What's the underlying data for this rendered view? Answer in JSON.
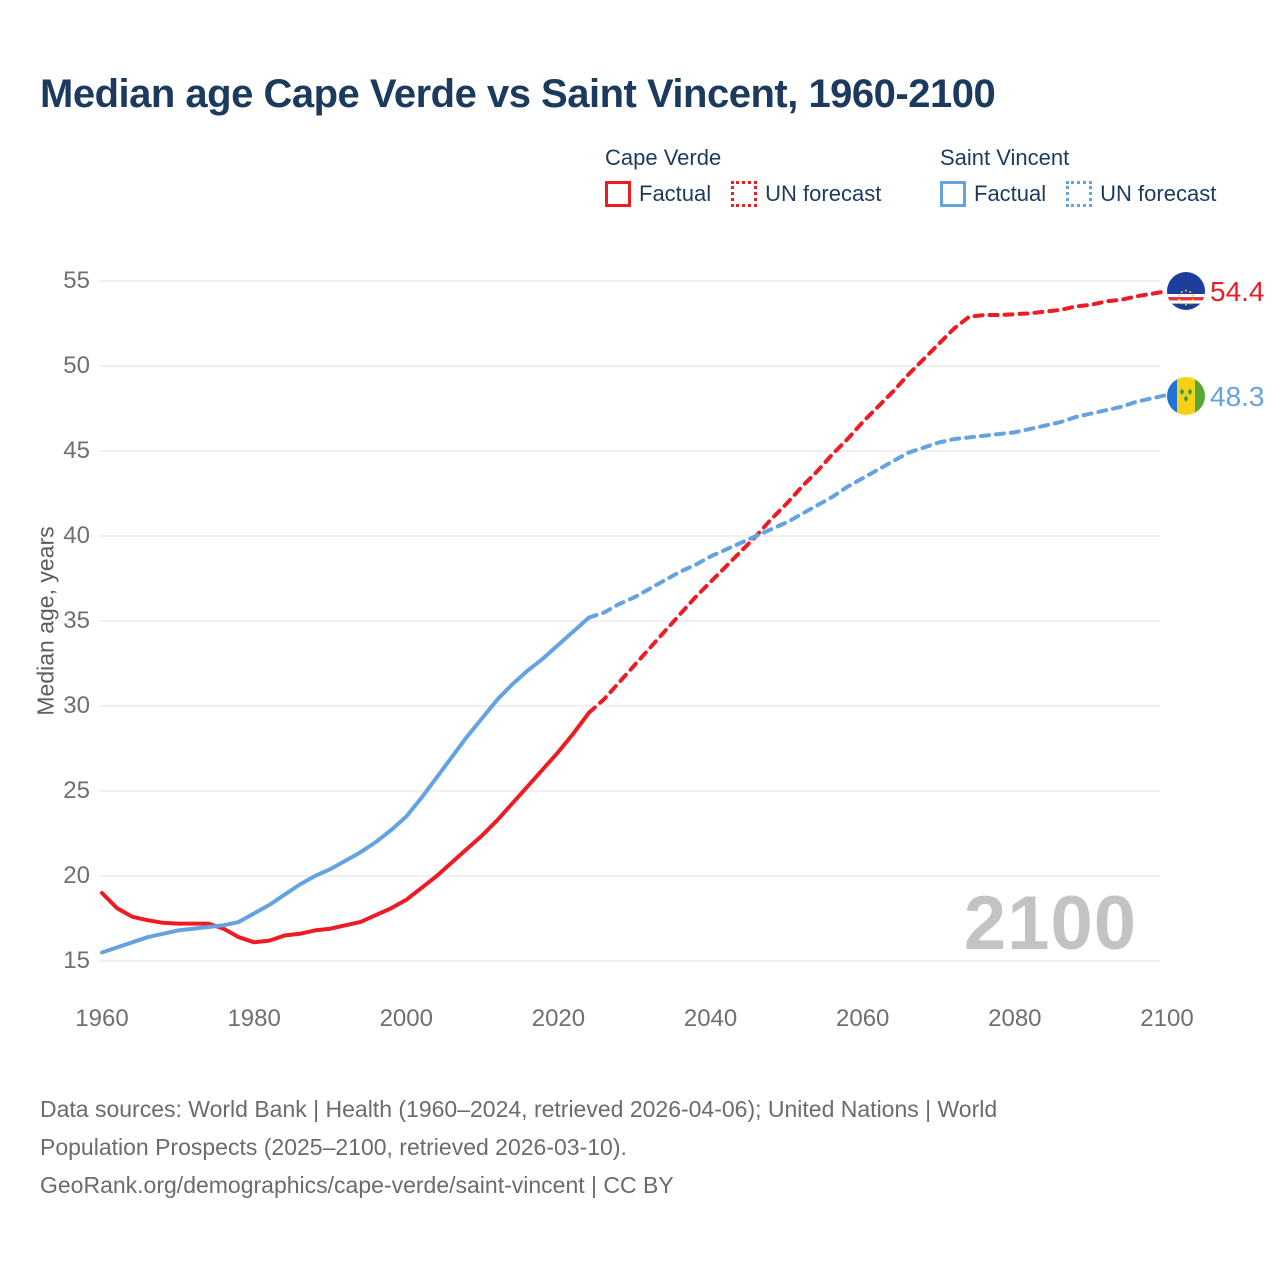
{
  "title": "Median age Cape Verde vs Saint Vincent, 1960-2100",
  "watermark": "2100",
  "legend": {
    "cape_verde": {
      "name": "Cape Verde",
      "factual_label": "Factual",
      "forecast_label": "UN forecast"
    },
    "saint_vincent": {
      "name": "Saint Vincent",
      "factual_label": "Factual",
      "forecast_label": "UN forecast"
    }
  },
  "end_labels": {
    "cape_verde": "54.4",
    "saint_vincent": "48.3"
  },
  "colors": {
    "cape_verde": "#ed1c24",
    "saint_vincent": "#64a3e0",
    "grid": "#ececec",
    "tick_text": "#6f6f6f",
    "title_text": "#1b3a5e",
    "watermark_text": "#c3c3c3"
  },
  "footer": {
    "line1": "Data sources: World Bank | Health (1960–2024, retrieved 2026-04-06); United Nations | World",
    "line2": "Population Prospects (2025–2100, retrieved 2026-03-10).",
    "line3": "GeoRank.org/demographics/cape-verde/saint-vincent | CC BY"
  },
  "chart_data": {
    "type": "line",
    "title": "Median age Cape Verde vs Saint Vincent, 1960-2100",
    "xlabel": "",
    "ylabel": "Median age, years",
    "x_ticks": [
      1960,
      1980,
      2000,
      2020,
      2040,
      2060,
      2080,
      2100
    ],
    "y_ticks": [
      15,
      20,
      25,
      30,
      35,
      40,
      45,
      50,
      55
    ],
    "xlim": [
      1960,
      2100
    ],
    "ylim": [
      15,
      55
    ],
    "grid": "horizontal",
    "legend_position": "top-right",
    "series": [
      {
        "name": "Cape Verde factual",
        "style": "solid",
        "color_key": "cape_verde",
        "points": [
          [
            1960,
            19.0
          ],
          [
            1962,
            18.1
          ],
          [
            1964,
            17.6
          ],
          [
            1966,
            17.4
          ],
          [
            1968,
            17.25
          ],
          [
            1970,
            17.2
          ],
          [
            1972,
            17.2
          ],
          [
            1974,
            17.2
          ],
          [
            1976,
            16.9
          ],
          [
            1978,
            16.4
          ],
          [
            1980,
            16.1
          ],
          [
            1982,
            16.2
          ],
          [
            1984,
            16.5
          ],
          [
            1986,
            16.6
          ],
          [
            1988,
            16.8
          ],
          [
            1990,
            16.9
          ],
          [
            1992,
            17.1
          ],
          [
            1994,
            17.3
          ],
          [
            1996,
            17.7
          ],
          [
            1998,
            18.1
          ],
          [
            2000,
            18.6
          ],
          [
            2002,
            19.3
          ],
          [
            2004,
            20.0
          ],
          [
            2006,
            20.8
          ],
          [
            2008,
            21.6
          ],
          [
            2010,
            22.4
          ],
          [
            2012,
            23.3
          ],
          [
            2014,
            24.3
          ],
          [
            2016,
            25.3
          ],
          [
            2018,
            26.3
          ],
          [
            2020,
            27.3
          ],
          [
            2022,
            28.4
          ],
          [
            2024,
            29.6
          ]
        ]
      },
      {
        "name": "Cape Verde UN forecast",
        "style": "dashed",
        "color_key": "cape_verde",
        "points": [
          [
            2024,
            29.6
          ],
          [
            2026,
            30.4
          ],
          [
            2028,
            31.4
          ],
          [
            2030,
            32.4
          ],
          [
            2032,
            33.4
          ],
          [
            2034,
            34.4
          ],
          [
            2036,
            35.4
          ],
          [
            2038,
            36.4
          ],
          [
            2040,
            37.3
          ],
          [
            2042,
            38.2
          ],
          [
            2044,
            39.1
          ],
          [
            2046,
            40.0
          ],
          [
            2048,
            41.0
          ],
          [
            2050,
            41.9
          ],
          [
            2052,
            42.9
          ],
          [
            2054,
            43.8
          ],
          [
            2056,
            44.8
          ],
          [
            2058,
            45.7
          ],
          [
            2060,
            46.7
          ],
          [
            2062,
            47.6
          ],
          [
            2064,
            48.5
          ],
          [
            2066,
            49.5
          ],
          [
            2068,
            50.4
          ],
          [
            2070,
            51.3
          ],
          [
            2072,
            52.2
          ],
          [
            2074,
            52.9
          ],
          [
            2076,
            53.0
          ],
          [
            2078,
            53.0
          ],
          [
            2080,
            53.05
          ],
          [
            2082,
            53.1
          ],
          [
            2084,
            53.2
          ],
          [
            2086,
            53.3
          ],
          [
            2088,
            53.5
          ],
          [
            2090,
            53.6
          ],
          [
            2092,
            53.8
          ],
          [
            2094,
            53.9
          ],
          [
            2096,
            54.1
          ],
          [
            2098,
            54.25
          ],
          [
            2100,
            54.4
          ]
        ]
      },
      {
        "name": "Saint Vincent factual",
        "style": "solid",
        "color_key": "saint_vincent",
        "points": [
          [
            1960,
            15.5
          ],
          [
            1962,
            15.8
          ],
          [
            1964,
            16.1
          ],
          [
            1966,
            16.4
          ],
          [
            1968,
            16.6
          ],
          [
            1970,
            16.8
          ],
          [
            1972,
            16.9
          ],
          [
            1974,
            17.0
          ],
          [
            1976,
            17.1
          ],
          [
            1978,
            17.3
          ],
          [
            1980,
            17.8
          ],
          [
            1982,
            18.3
          ],
          [
            1984,
            18.9
          ],
          [
            1986,
            19.5
          ],
          [
            1988,
            20.0
          ],
          [
            1990,
            20.4
          ],
          [
            1992,
            20.9
          ],
          [
            1994,
            21.4
          ],
          [
            1996,
            22.0
          ],
          [
            1998,
            22.7
          ],
          [
            2000,
            23.5
          ],
          [
            2002,
            24.6
          ],
          [
            2004,
            25.8
          ],
          [
            2006,
            27.0
          ],
          [
            2008,
            28.2
          ],
          [
            2010,
            29.3
          ],
          [
            2012,
            30.4
          ],
          [
            2014,
            31.3
          ],
          [
            2016,
            32.1
          ],
          [
            2018,
            32.8
          ],
          [
            2020,
            33.6
          ],
          [
            2022,
            34.4
          ],
          [
            2024,
            35.2
          ]
        ]
      },
      {
        "name": "Saint Vincent UN forecast",
        "style": "dashed",
        "color_key": "saint_vincent",
        "points": [
          [
            2024,
            35.2
          ],
          [
            2026,
            35.5
          ],
          [
            2028,
            36.0
          ],
          [
            2030,
            36.4
          ],
          [
            2032,
            36.9
          ],
          [
            2034,
            37.4
          ],
          [
            2036,
            37.9
          ],
          [
            2038,
            38.3
          ],
          [
            2040,
            38.8
          ],
          [
            2042,
            39.2
          ],
          [
            2044,
            39.6
          ],
          [
            2046,
            40.0
          ],
          [
            2048,
            40.4
          ],
          [
            2050,
            40.8
          ],
          [
            2052,
            41.3
          ],
          [
            2054,
            41.8
          ],
          [
            2056,
            42.3
          ],
          [
            2058,
            42.9
          ],
          [
            2060,
            43.4
          ],
          [
            2062,
            43.9
          ],
          [
            2064,
            44.4
          ],
          [
            2066,
            44.9
          ],
          [
            2068,
            45.2
          ],
          [
            2070,
            45.5
          ],
          [
            2072,
            45.7
          ],
          [
            2074,
            45.8
          ],
          [
            2076,
            45.9
          ],
          [
            2078,
            46.0
          ],
          [
            2080,
            46.1
          ],
          [
            2082,
            46.3
          ],
          [
            2084,
            46.5
          ],
          [
            2086,
            46.7
          ],
          [
            2088,
            47.0
          ],
          [
            2090,
            47.2
          ],
          [
            2092,
            47.4
          ],
          [
            2094,
            47.6
          ],
          [
            2096,
            47.9
          ],
          [
            2098,
            48.1
          ],
          [
            2100,
            48.3
          ]
        ]
      }
    ]
  }
}
